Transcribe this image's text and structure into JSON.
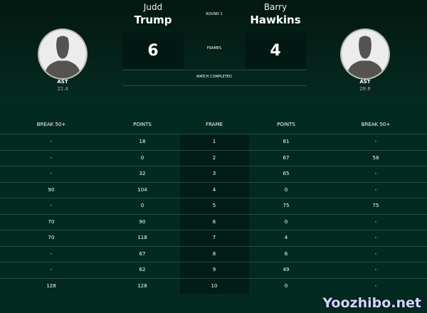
{
  "round": "ROUND 1",
  "frames_label": "FRAMES",
  "status": "MATCH COMPLETED",
  "player1": {
    "first": "Judd",
    "last": "Trump",
    "score": "6",
    "stat_label": "AST",
    "stat_value": "22.4"
  },
  "player2": {
    "first": "Barry",
    "last": "Hawkins",
    "score": "4",
    "stat_label": "AST",
    "stat_value": "28.6"
  },
  "columns": [
    "BREAK 50+",
    "POINTS",
    "FRAME",
    "POINTS",
    "BREAK 50+"
  ],
  "rows": [
    [
      "-",
      "18",
      "1",
      "81",
      "-"
    ],
    [
      "-",
      "0",
      "2",
      "67",
      "58"
    ],
    [
      "-",
      "32",
      "3",
      "65",
      "-"
    ],
    [
      "90",
      "104",
      "4",
      "0",
      "-"
    ],
    [
      "-",
      "0",
      "5",
      "75",
      "75"
    ],
    [
      "70",
      "90",
      "6",
      "0",
      "-"
    ],
    [
      "70",
      "118",
      "7",
      "4",
      "-"
    ],
    [
      "-",
      "67",
      "8",
      "6",
      "-"
    ],
    [
      "-",
      "62",
      "9",
      "49",
      "-"
    ],
    [
      "128",
      "128",
      "10",
      "0",
      "-"
    ]
  ],
  "watermark": "Yoozhibo.net"
}
